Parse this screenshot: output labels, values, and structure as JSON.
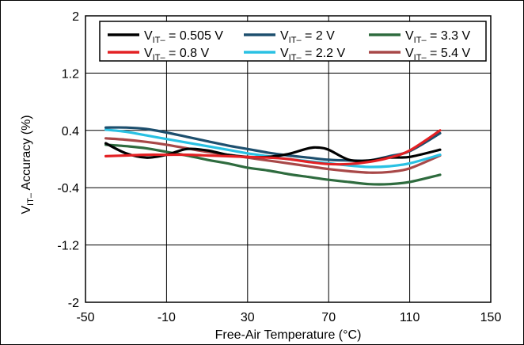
{
  "chart_data": {
    "type": "line",
    "title": "",
    "xlabel": "Free-Air Temperature (°C)",
    "ylabel": {
      "main": "V",
      "sub": "IT–",
      "rest": " Accuracy (%)"
    },
    "xlim": [
      -50,
      150
    ],
    "ylim": [
      -2,
      2
    ],
    "xticks": [
      -50,
      -10,
      30,
      70,
      110,
      150
    ],
    "yticks": [
      2,
      1.2,
      0.4,
      -0.4,
      -1.2,
      -2
    ],
    "xtick_labels": [
      "-50",
      "-10",
      "30",
      "70",
      "110",
      "150"
    ],
    "ytick_labels": [
      "2",
      "1.2",
      "0.4",
      "-0.4",
      "-1.2",
      "-2"
    ],
    "grid": true,
    "legend_position": "top",
    "series": [
      {
        "name": {
          "main": "V",
          "sub": "IT–",
          "rest": " = 0.505 V"
        },
        "color": "#000000",
        "x": [
          -40,
          -30,
          -20,
          -10,
          0,
          10,
          20,
          30,
          40,
          50,
          60,
          65,
          70,
          80,
          90,
          100,
          110,
          125
        ],
        "y": [
          0.22,
          0.08,
          0.02,
          0.06,
          0.14,
          0.12,
          0.06,
          0.03,
          0.03,
          0.07,
          0.15,
          0.16,
          0.13,
          -0.01,
          -0.02,
          0.02,
          0.03,
          0.13
        ]
      },
      {
        "name": {
          "main": "V",
          "sub": "IT–",
          "rest": " = 2 V"
        },
        "color": "#1d4f6e",
        "x": [
          -40,
          -30,
          -20,
          -10,
          0,
          10,
          20,
          30,
          40,
          50,
          60,
          70,
          80,
          90,
          100,
          110,
          125
        ],
        "y": [
          0.44,
          0.44,
          0.42,
          0.37,
          0.31,
          0.25,
          0.19,
          0.14,
          0.09,
          0.05,
          0.02,
          -0.01,
          -0.02,
          -0.02,
          0.04,
          0.11,
          0.36
        ]
      },
      {
        "name": {
          "main": "V",
          "sub": "IT–",
          "rest": " = 3.3 V"
        },
        "color": "#2e6b3e",
        "x": [
          -40,
          -30,
          -20,
          -10,
          0,
          10,
          20,
          30,
          40,
          50,
          60,
          70,
          80,
          90,
          100,
          110,
          125
        ],
        "y": [
          0.2,
          0.18,
          0.15,
          0.1,
          0.05,
          -0.01,
          -0.06,
          -0.12,
          -0.16,
          -0.21,
          -0.25,
          -0.29,
          -0.32,
          -0.35,
          -0.35,
          -0.32,
          -0.22
        ]
      },
      {
        "name": {
          "main": "V",
          "sub": "IT–",
          "rest": " = 0.8 V"
        },
        "color": "#e32124",
        "x": [
          -40,
          -30,
          -20,
          -10,
          0,
          10,
          20,
          30,
          40,
          50,
          60,
          70,
          80,
          90,
          100,
          110,
          125
        ],
        "y": [
          0.04,
          0.05,
          0.06,
          0.06,
          0.06,
          0.05,
          0.04,
          0.03,
          0.02,
          0.0,
          -0.04,
          -0.07,
          -0.07,
          -0.04,
          0.02,
          0.12,
          0.4
        ]
      },
      {
        "name": {
          "main": "V",
          "sub": "IT–",
          "rest": " = 2.2 V"
        },
        "color": "#29c1e3",
        "x": [
          -40,
          -30,
          -20,
          -10,
          0,
          10,
          20,
          30,
          40,
          50,
          60,
          70,
          80,
          90,
          100,
          110,
          125
        ],
        "y": [
          0.41,
          0.38,
          0.33,
          0.28,
          0.23,
          0.18,
          0.13,
          0.08,
          0.04,
          0.0,
          -0.03,
          -0.06,
          -0.09,
          -0.11,
          -0.1,
          -0.06,
          0.06
        ]
      },
      {
        "name": {
          "main": "V",
          "sub": "IT–",
          "rest": " = 5.4 V"
        },
        "color": "#a84848",
        "x": [
          -40,
          -30,
          -20,
          -10,
          0,
          10,
          20,
          30,
          40,
          50,
          60,
          70,
          80,
          90,
          100,
          110,
          125
        ],
        "y": [
          0.29,
          0.27,
          0.24,
          0.2,
          0.15,
          0.1,
          0.06,
          0.02,
          -0.02,
          -0.06,
          -0.1,
          -0.14,
          -0.17,
          -0.19,
          -0.18,
          -0.13,
          0.05
        ]
      }
    ]
  }
}
